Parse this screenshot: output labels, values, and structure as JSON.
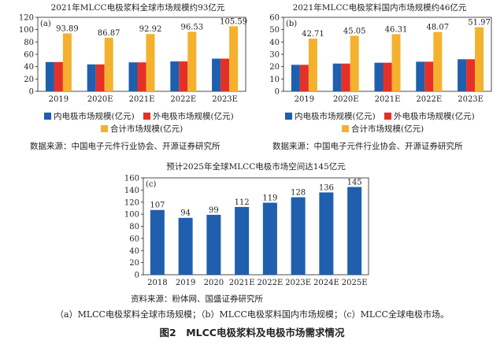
{
  "colors": {
    "blue": "#1f5fae",
    "red": "#e53027",
    "orange": "#f5b12e"
  },
  "chart_data": [
    {
      "id": "a",
      "type": "bar",
      "panel_label": "(a)",
      "title": "2021年MLCC电极浆料全球市场规模约93亿元",
      "categories": [
        "2019",
        "2020E",
        "2021E",
        "2022E",
        "2023E"
      ],
      "ylim": [
        0,
        120
      ],
      "yticks": [
        0,
        20,
        40,
        60,
        80,
        100,
        120
      ],
      "series": [
        {
          "name": "内电极市场规模(亿元)",
          "color": "#1f5fae",
          "values": [
            47.5,
            43.7,
            47.0,
            48.5,
            53.0
          ]
        },
        {
          "name": "外电极市场规模(亿元)",
          "color": "#e53027",
          "values": [
            47.5,
            43.7,
            47.0,
            48.5,
            53.0
          ]
        },
        {
          "name": "合计市场规模(亿元)",
          "color": "#f5b12e",
          "values": [
            93.89,
            86.87,
            92.92,
            96.53,
            105.59
          ],
          "labels": [
            "93.89",
            "86.87",
            "92.92",
            "96.53",
            "105.59"
          ]
        }
      ],
      "source": "数据来源：中国电子元件行业协会、开源证券研究所"
    },
    {
      "id": "b",
      "type": "bar",
      "panel_label": "(b)",
      "title": "2021年MLCC电极浆料国内市场规模约46亿元",
      "categories": [
        "2019",
        "2020E",
        "2021E",
        "2022E",
        "2023E"
      ],
      "ylim": [
        0,
        60
      ],
      "yticks": [
        0,
        10,
        20,
        30,
        40,
        50,
        60
      ],
      "series": [
        {
          "name": "内电极市场规模(亿元)",
          "color": "#1f5fae",
          "values": [
            21.5,
            22.5,
            23.2,
            24.0,
            26.0
          ]
        },
        {
          "name": "外电极市场规模(亿元)",
          "color": "#e53027",
          "values": [
            21.5,
            22.5,
            23.2,
            24.0,
            26.0
          ]
        },
        {
          "name": "合计市场规模(亿元)",
          "color": "#f5b12e",
          "values": [
            42.71,
            45.05,
            46.31,
            48.07,
            51.97
          ],
          "labels": [
            "42.71",
            "45.05",
            "46.31",
            "48.07",
            "51.97"
          ]
        }
      ],
      "source": "数据来源：中国电子元件行业协会、开源证券研究所"
    },
    {
      "id": "c",
      "type": "bar",
      "panel_label": "(c)",
      "title": "预计2025年全球MLCC电极市场空间达145亿元",
      "categories": [
        "2018",
        "2019",
        "2020",
        "2021E",
        "2022E",
        "2023E",
        "2024E",
        "2025E"
      ],
      "ylim": [
        0,
        160
      ],
      "yticks": [
        0,
        20,
        40,
        60,
        80,
        100,
        120,
        140,
        160
      ],
      "series": [
        {
          "name": "",
          "color": "#1f5fae",
          "values": [
            107,
            94,
            99,
            112,
            119,
            128,
            136,
            145
          ],
          "labels": [
            "107",
            "94",
            "99",
            "112",
            "119",
            "128",
            "136",
            "145"
          ]
        }
      ],
      "source": "资料来源：粉体网、国盛证券研究所"
    }
  ],
  "caption_sub": "（a）MLCC电极浆料全球市场规模；（b）MLCC电极浆料国内市场规模；（c）MLCC全球电极市场。",
  "caption_main": "图2　MLCC电极浆料及电极市场需求情况"
}
